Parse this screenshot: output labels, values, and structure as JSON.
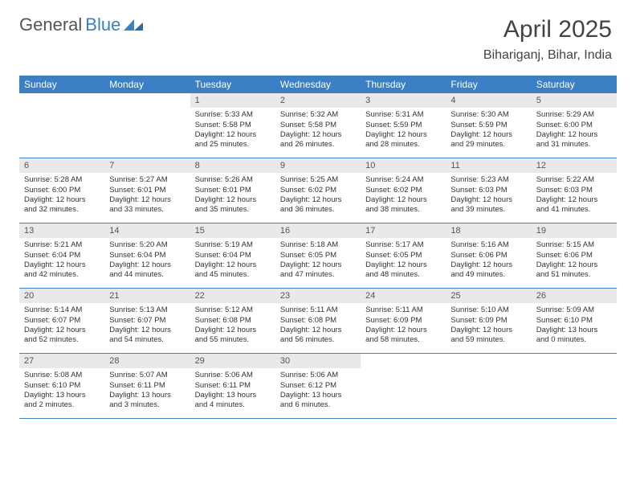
{
  "brand": {
    "part1": "General",
    "part2": "Blue"
  },
  "header": {
    "title": "April 2025",
    "location": "Bihariganj, Bihar, India"
  },
  "colors": {
    "accent": "#3b7fc4",
    "dayNumBg": "#e9e9e9",
    "text": "#333333",
    "bg": "#ffffff"
  },
  "dow": [
    "Sunday",
    "Monday",
    "Tuesday",
    "Wednesday",
    "Thursday",
    "Friday",
    "Saturday"
  ],
  "calendar": {
    "type": "table",
    "columns": 7,
    "rows": 5,
    "leading_blanks": 2,
    "days": [
      {
        "n": 1,
        "sunrise": "5:33 AM",
        "sunset": "5:58 PM",
        "daylight": "12 hours and 25 minutes."
      },
      {
        "n": 2,
        "sunrise": "5:32 AM",
        "sunset": "5:58 PM",
        "daylight": "12 hours and 26 minutes."
      },
      {
        "n": 3,
        "sunrise": "5:31 AM",
        "sunset": "5:59 PM",
        "daylight": "12 hours and 28 minutes."
      },
      {
        "n": 4,
        "sunrise": "5:30 AM",
        "sunset": "5:59 PM",
        "daylight": "12 hours and 29 minutes."
      },
      {
        "n": 5,
        "sunrise": "5:29 AM",
        "sunset": "6:00 PM",
        "daylight": "12 hours and 31 minutes."
      },
      {
        "n": 6,
        "sunrise": "5:28 AM",
        "sunset": "6:00 PM",
        "daylight": "12 hours and 32 minutes."
      },
      {
        "n": 7,
        "sunrise": "5:27 AM",
        "sunset": "6:01 PM",
        "daylight": "12 hours and 33 minutes."
      },
      {
        "n": 8,
        "sunrise": "5:26 AM",
        "sunset": "6:01 PM",
        "daylight": "12 hours and 35 minutes."
      },
      {
        "n": 9,
        "sunrise": "5:25 AM",
        "sunset": "6:02 PM",
        "daylight": "12 hours and 36 minutes."
      },
      {
        "n": 10,
        "sunrise": "5:24 AM",
        "sunset": "6:02 PM",
        "daylight": "12 hours and 38 minutes."
      },
      {
        "n": 11,
        "sunrise": "5:23 AM",
        "sunset": "6:03 PM",
        "daylight": "12 hours and 39 minutes."
      },
      {
        "n": 12,
        "sunrise": "5:22 AM",
        "sunset": "6:03 PM",
        "daylight": "12 hours and 41 minutes."
      },
      {
        "n": 13,
        "sunrise": "5:21 AM",
        "sunset": "6:04 PM",
        "daylight": "12 hours and 42 minutes."
      },
      {
        "n": 14,
        "sunrise": "5:20 AM",
        "sunset": "6:04 PM",
        "daylight": "12 hours and 44 minutes."
      },
      {
        "n": 15,
        "sunrise": "5:19 AM",
        "sunset": "6:04 PM",
        "daylight": "12 hours and 45 minutes."
      },
      {
        "n": 16,
        "sunrise": "5:18 AM",
        "sunset": "6:05 PM",
        "daylight": "12 hours and 47 minutes."
      },
      {
        "n": 17,
        "sunrise": "5:17 AM",
        "sunset": "6:05 PM",
        "daylight": "12 hours and 48 minutes."
      },
      {
        "n": 18,
        "sunrise": "5:16 AM",
        "sunset": "6:06 PM",
        "daylight": "12 hours and 49 minutes."
      },
      {
        "n": 19,
        "sunrise": "5:15 AM",
        "sunset": "6:06 PM",
        "daylight": "12 hours and 51 minutes."
      },
      {
        "n": 20,
        "sunrise": "5:14 AM",
        "sunset": "6:07 PM",
        "daylight": "12 hours and 52 minutes."
      },
      {
        "n": 21,
        "sunrise": "5:13 AM",
        "sunset": "6:07 PM",
        "daylight": "12 hours and 54 minutes."
      },
      {
        "n": 22,
        "sunrise": "5:12 AM",
        "sunset": "6:08 PM",
        "daylight": "12 hours and 55 minutes."
      },
      {
        "n": 23,
        "sunrise": "5:11 AM",
        "sunset": "6:08 PM",
        "daylight": "12 hours and 56 minutes."
      },
      {
        "n": 24,
        "sunrise": "5:11 AM",
        "sunset": "6:09 PM",
        "daylight": "12 hours and 58 minutes."
      },
      {
        "n": 25,
        "sunrise": "5:10 AM",
        "sunset": "6:09 PM",
        "daylight": "12 hours and 59 minutes."
      },
      {
        "n": 26,
        "sunrise": "5:09 AM",
        "sunset": "6:10 PM",
        "daylight": "13 hours and 0 minutes."
      },
      {
        "n": 27,
        "sunrise": "5:08 AM",
        "sunset": "6:10 PM",
        "daylight": "13 hours and 2 minutes."
      },
      {
        "n": 28,
        "sunrise": "5:07 AM",
        "sunset": "6:11 PM",
        "daylight": "13 hours and 3 minutes."
      },
      {
        "n": 29,
        "sunrise": "5:06 AM",
        "sunset": "6:11 PM",
        "daylight": "13 hours and 4 minutes."
      },
      {
        "n": 30,
        "sunrise": "5:06 AM",
        "sunset": "6:12 PM",
        "daylight": "13 hours and 6 minutes."
      }
    ]
  },
  "labels": {
    "sunrise": "Sunrise:",
    "sunset": "Sunset:",
    "daylight": "Daylight:"
  }
}
